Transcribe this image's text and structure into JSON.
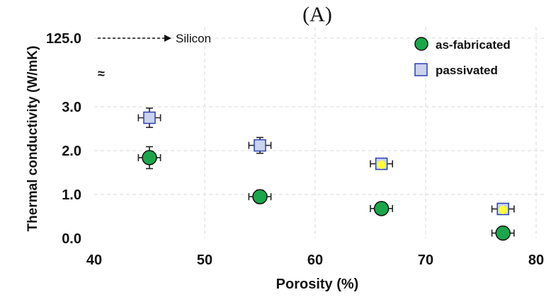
{
  "chart_data": {
    "type": "scatter",
    "panel_label": "(A)",
    "xlabel": "Porosity (%)",
    "ylabel": "Thermal conductivity (W/mK)",
    "xlim": [
      40,
      80
    ],
    "ylim": [
      0,
      3.3
    ],
    "x_ticks": [
      "40",
      "50",
      "60",
      "70",
      "80"
    ],
    "y_ticks": [
      "0.0",
      "1.0",
      "2.0",
      "3.0"
    ],
    "break_tick": "125.0",
    "break_symbol": "≈",
    "annotation": "Silicon",
    "grid": true,
    "legend_position": "top-right",
    "series": [
      {
        "name": "as-fabricated",
        "marker": "circle",
        "color": "#1aa64b",
        "points": [
          {
            "x": 45,
            "y": 1.84,
            "xerr": 1.0,
            "yerr": 0.25
          },
          {
            "x": 55,
            "y": 0.95,
            "xerr": 1.0,
            "yerr": 0.15
          },
          {
            "x": 66,
            "y": 0.68,
            "xerr": 1.0,
            "yerr": 0.08
          },
          {
            "x": 77,
            "y": 0.12,
            "xerr": 1.0,
            "yerr": 0.05
          }
        ]
      },
      {
        "name": "passivated",
        "marker": "square",
        "color": "#c9d3ec",
        "edge_color": "#2b3fb0",
        "points": [
          {
            "x": 45,
            "y": 2.75,
            "xerr": 1.0,
            "yerr": 0.22
          },
          {
            "x": 55,
            "y": 2.12,
            "xerr": 1.0,
            "yerr": 0.18
          },
          {
            "x": 66,
            "y": 1.7,
            "xerr": 1.0,
            "yerr": 0.1
          },
          {
            "x": 77,
            "y": 0.67,
            "xerr": 1.0,
            "yerr": 0.06
          }
        ]
      }
    ],
    "highlight_points": {
      "color": "#ffff33",
      "points": [
        {
          "x": 66,
          "y": 1.68
        },
        {
          "x": 77,
          "y": 0.65
        }
      ]
    }
  }
}
